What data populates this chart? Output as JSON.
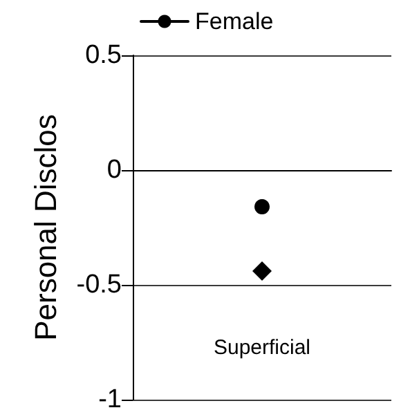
{
  "chart_data": {
    "type": "line",
    "ylabel": "Personal Disclos",
    "categories": [
      "Superficial"
    ],
    "series": [
      {
        "name": "Female",
        "color": "#000000",
        "values": [
          -0.16
        ],
        "marker": "circle"
      },
      {
        "color": "#000000",
        "values": [
          -0.44
        ],
        "marker": "diamond"
      }
    ],
    "ylim": [
      -1,
      0.5
    ],
    "yticks": [
      -1,
      -0.5,
      0,
      0.5
    ],
    "grid": "y",
    "legend": "top left",
    "line_style": "solid"
  }
}
